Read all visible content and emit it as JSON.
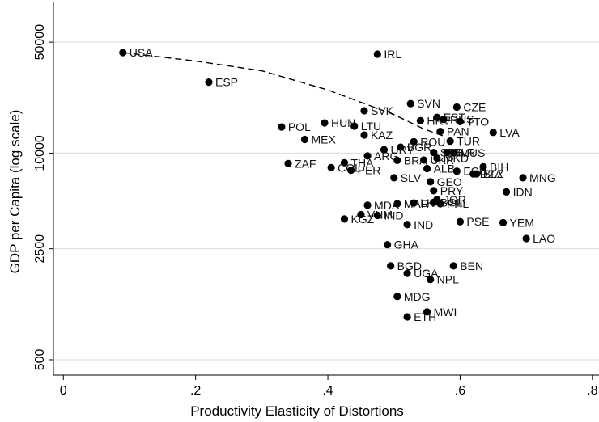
{
  "chart_data": {
    "type": "scatter",
    "xlabel": "Productivity Elasticity of Distortions",
    "ylabel": "GDP per Capita (log scale)",
    "y_scale": "log",
    "xlim": [
      -0.015,
      0.81
    ],
    "ylim": [
      400,
      90000
    ],
    "x_ticks": [
      {
        "value": 0,
        "label": "0"
      },
      {
        "value": 0.2,
        "label": ".2"
      },
      {
        "value": 0.4,
        "label": ".4"
      },
      {
        "value": 0.6,
        "label": ".6"
      },
      {
        "value": 0.8,
        "label": ".8"
      }
    ],
    "y_ticks": [
      {
        "value": 50000,
        "label": "50000"
      },
      {
        "value": 10000,
        "label": "10000"
      },
      {
        "value": 2500,
        "label": "2500"
      },
      {
        "value": 500,
        "label": "500"
      }
    ],
    "grid": true,
    "frontier": [
      {
        "x": 0.09,
        "y": 43000
      },
      {
        "x": 0.2,
        "y": 38000
      },
      {
        "x": 0.3,
        "y": 33000
      },
      {
        "x": 0.4,
        "y": 25000
      },
      {
        "x": 0.5,
        "y": 17500
      },
      {
        "x": 0.545,
        "y": 14200
      },
      {
        "x": 0.58,
        "y": 12600
      }
    ],
    "points": [
      {
        "label": "USA",
        "x": 0.09,
        "y": 43000
      },
      {
        "label": "IRL",
        "x": 0.475,
        "y": 42000
      },
      {
        "label": "ESP",
        "x": 0.22,
        "y": 28000
      },
      {
        "label": "SVN",
        "x": 0.525,
        "y": 20500
      },
      {
        "label": "CZE",
        "x": 0.595,
        "y": 19500
      },
      {
        "label": "SVK",
        "x": 0.455,
        "y": 18500
      },
      {
        "label": "EST",
        "x": 0.565,
        "y": 16800
      },
      {
        "label": "HRV",
        "x": 0.54,
        "y": 16000
      },
      {
        "label": "RUS",
        "x": 0.575,
        "y": 16300
      },
      {
        "label": "TTO",
        "x": 0.6,
        "y": 15800
      },
      {
        "label": "HUN",
        "x": 0.395,
        "y": 15500
      },
      {
        "label": "LTU",
        "x": 0.44,
        "y": 14800
      },
      {
        "label": "POL",
        "x": 0.33,
        "y": 14600
      },
      {
        "label": "PAN",
        "x": 0.57,
        "y": 13700
      },
      {
        "label": "LVA",
        "x": 0.65,
        "y": 13500
      },
      {
        "label": "KAZ",
        "x": 0.455,
        "y": 13000
      },
      {
        "label": "MEX",
        "x": 0.365,
        "y": 12200
      },
      {
        "label": "TUR",
        "x": 0.585,
        "y": 11900
      },
      {
        "label": "ROU",
        "x": 0.53,
        "y": 11800
      },
      {
        "label": "BGR",
        "x": 0.51,
        "y": 10900
      },
      {
        "label": "URY",
        "x": 0.485,
        "y": 10500
      },
      {
        "label": "SRB",
        "x": 0.56,
        "y": 10100
      },
      {
        "label": "BLR",
        "x": 0.58,
        "y": 10100
      },
      {
        "label": "MUS",
        "x": 0.59,
        "y": 10050
      },
      {
        "label": "ARG",
        "x": 0.46,
        "y": 9600
      },
      {
        "label": "MKD",
        "x": 0.565,
        "y": 9300
      },
      {
        "label": "BRA",
        "x": 0.505,
        "y": 9000
      },
      {
        "label": "UKR",
        "x": 0.545,
        "y": 9050
      },
      {
        "label": "ZAF",
        "x": 0.34,
        "y": 8600
      },
      {
        "label": "THA",
        "x": 0.425,
        "y": 8700
      },
      {
        "label": "COL",
        "x": 0.405,
        "y": 8100
      },
      {
        "label": "PER",
        "x": 0.435,
        "y": 7800
      },
      {
        "label": "ALB",
        "x": 0.55,
        "y": 8000
      },
      {
        "label": "BIH",
        "x": 0.635,
        "y": 8200
      },
      {
        "label": "ECU",
        "x": 0.595,
        "y": 7700
      },
      {
        "label": "DZA",
        "x": 0.62,
        "y": 7400
      },
      {
        "label": "BLZ",
        "x": 0.625,
        "y": 7400
      },
      {
        "label": "SLV",
        "x": 0.5,
        "y": 7000
      },
      {
        "label": "MNG",
        "x": 0.695,
        "y": 7000
      },
      {
        "label": "GEO",
        "x": 0.555,
        "y": 6600
      },
      {
        "label": "PRY",
        "x": 0.56,
        "y": 5800
      },
      {
        "label": "IDN",
        "x": 0.67,
        "y": 5700
      },
      {
        "label": "JOR",
        "x": 0.565,
        "y": 5100
      },
      {
        "label": "BOL",
        "x": 0.56,
        "y": 4900
      },
      {
        "label": "PHL",
        "x": 0.57,
        "y": 4800
      },
      {
        "label": "MAR",
        "x": 0.505,
        "y": 4800
      },
      {
        "label": "LKA",
        "x": 0.53,
        "y": 4850
      },
      {
        "label": "MDA",
        "x": 0.46,
        "y": 4700
      },
      {
        "label": "VNM",
        "x": 0.45,
        "y": 4100
      },
      {
        "label": "IND",
        "x": 0.475,
        "y": 4050
      },
      {
        "label": "KGZ",
        "x": 0.425,
        "y": 3850
      },
      {
        "label": "PSE",
        "x": 0.6,
        "y": 3700
      },
      {
        "label": "YEM",
        "x": 0.665,
        "y": 3650
      },
      {
        "label": "IND",
        "x": 0.52,
        "y": 3550
      },
      {
        "label": "LAO",
        "x": 0.7,
        "y": 2900
      },
      {
        "label": "GHA",
        "x": 0.49,
        "y": 2650
      },
      {
        "label": "BEN",
        "x": 0.59,
        "y": 1950
      },
      {
        "label": "BGD",
        "x": 0.495,
        "y": 1950
      },
      {
        "label": "UGA",
        "x": 0.52,
        "y": 1750
      },
      {
        "label": "NPL",
        "x": 0.555,
        "y": 1600
      },
      {
        "label": "MDG",
        "x": 0.505,
        "y": 1250
      },
      {
        "label": "MWI",
        "x": 0.55,
        "y": 1000
      },
      {
        "label": "ETH",
        "x": 0.52,
        "y": 930
      }
    ]
  }
}
